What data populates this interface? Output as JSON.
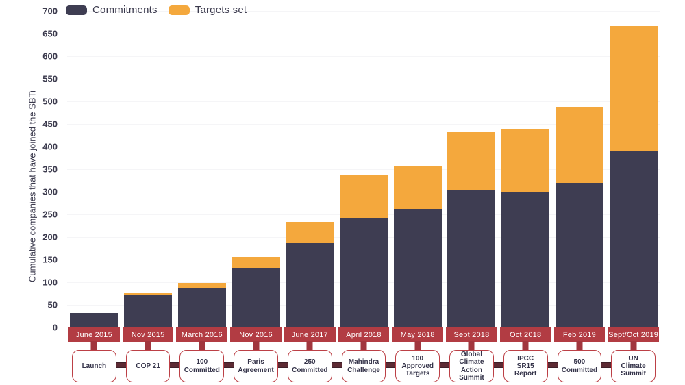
{
  "chart_data": {
    "type": "bar",
    "variant": "stacked",
    "title": "",
    "xlabel": "",
    "ylabel": "Cumulative companies that have joined the SBTi",
    "ylim": [
      0,
      700
    ],
    "ytick_step": 50,
    "grid": "faint-horizontal",
    "legend_position": "top-left",
    "categories": [
      "June 2015",
      "Nov 2015",
      "March 2016",
      "Nov 2016",
      "June 2017",
      "April 2018",
      "May 2018",
      "Sept 2018",
      "Oct 2018",
      "Feb 2019",
      "Sept/Oct 2019"
    ],
    "series": [
      {
        "name": "Commitments",
        "color": "#3e3d52",
        "values": [
          32,
          71,
          88,
          132,
          186,
          242,
          262,
          303,
          298,
          320,
          389
        ]
      },
      {
        "name": "Targets set",
        "color": "#f4a83d",
        "values": [
          0,
          6,
          10,
          24,
          48,
          94,
          95,
          130,
          140,
          168,
          278
        ]
      }
    ],
    "totals": [
      32,
      77,
      98,
      156,
      234,
      336,
      357,
      433,
      438,
      488,
      667
    ],
    "milestones": [
      {
        "date": "June 2015",
        "label": "Launch"
      },
      {
        "date": "Nov 2015",
        "label": "COP 21"
      },
      {
        "date": "March 2016",
        "label": "100\nCommitted"
      },
      {
        "date": "Nov 2016",
        "label": "Paris\nAgreement"
      },
      {
        "date": "June 2017",
        "label": "250\nCommitted"
      },
      {
        "date": "April 2018",
        "label": "Mahindra\nChallenge"
      },
      {
        "date": "May 2018",
        "label": "100\nApproved\nTargets"
      },
      {
        "date": "Sept 2018",
        "label": "Global\nClimate\nAction\nSummit"
      },
      {
        "date": "Oct 2018",
        "label": "IPCC\nSR15\nReport"
      },
      {
        "date": "Feb 2019",
        "label": "500\nCommitted"
      },
      {
        "date": "Sept/Oct 2019",
        "label": "UN\nClimate\nSummit"
      }
    ]
  },
  "colors": {
    "commitments": "#3e3d52",
    "targets": "#f4a83d",
    "date_band": "#b23c43",
    "band_text": "#ffffff",
    "stub": "#a1363e",
    "connector": "#5c2a33",
    "connector_edge": "#3f2029",
    "box_border": "#bc4046",
    "box_text": "#35344a",
    "axis_text": "#3b3a4d",
    "background": "#ffffff"
  }
}
